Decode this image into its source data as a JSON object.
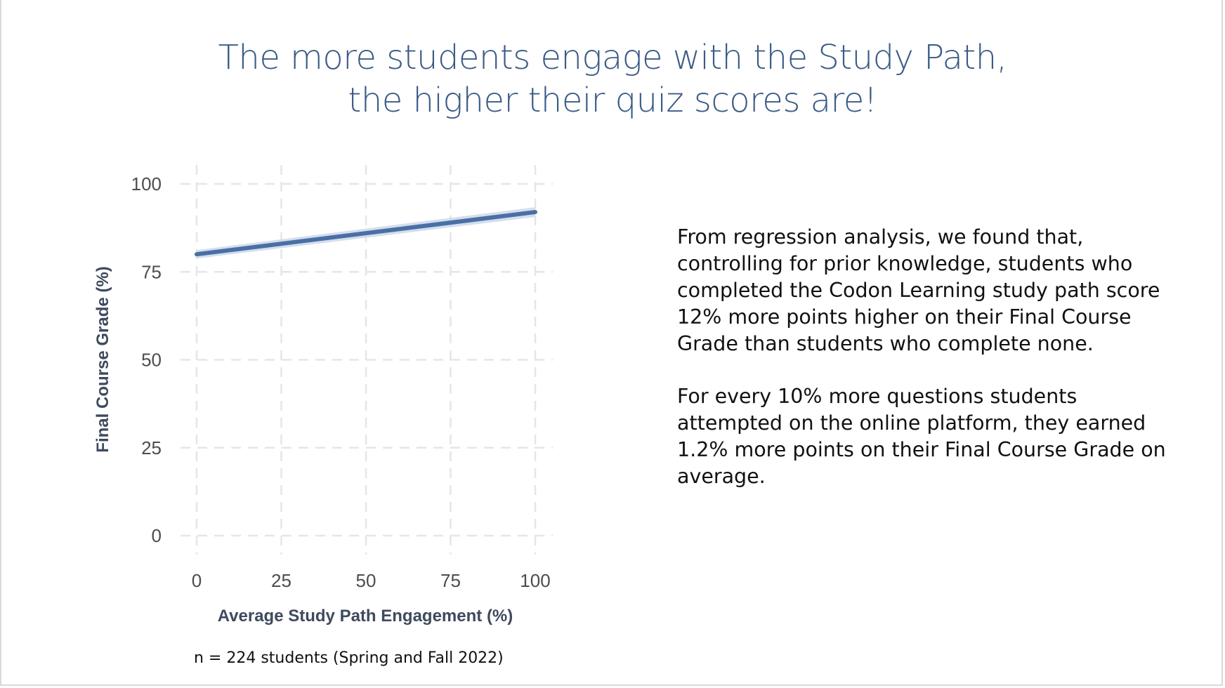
{
  "slide": {
    "title_lines": [
      "The more students engage with the Study Path,",
      "the higher their quiz scores are!"
    ],
    "caption": "n = 224 students (Spring and Fall 2022)",
    "paragraphs": [
      "From regression analysis, we found that, controlling for prior knowledge, students who completed the Codon Learning study path score 12% more points higher on their Final Course Grade than students who complete none.",
      "For every 10% more questions students attempted on the online platform, they earned 1.2% more points on their Final Course Grade on average."
    ]
  },
  "chart_data": {
    "type": "line",
    "title": "",
    "xlabel": "Average Study Path Engagement (%)",
    "ylabel": "Final Course Grade (%)",
    "xlim": [
      0,
      100
    ],
    "ylim": [
      0,
      100
    ],
    "x_ticks": [
      0,
      25,
      50,
      75,
      100
    ],
    "y_ticks": [
      0,
      25,
      50,
      75,
      100
    ],
    "grid": true,
    "grid_style": "dashed",
    "series": [
      {
        "x": [
          0,
          100
        ],
        "y": [
          80,
          92
        ],
        "ci_lower": [
          78.8,
          90.6
        ],
        "ci_upper": [
          81.2,
          93.4
        ]
      }
    ],
    "colors": {
      "line": "#4a6fa5",
      "ribbon": "#c9d6e8",
      "grid": "#e6e6e6"
    }
  }
}
